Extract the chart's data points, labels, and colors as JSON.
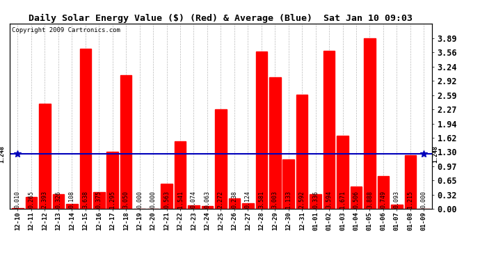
{
  "title": "Daily Solar Energy Value ($) (Red) & Average (Blue)  Sat Jan 10 09:03",
  "copyright": "Copyright 2009 Cartronics.com",
  "average": 1.248,
  "categories": [
    "12-10",
    "12-11",
    "12-12",
    "12-13",
    "12-14",
    "12-15",
    "12-16",
    "12-17",
    "12-18",
    "12-19",
    "12-20",
    "12-21",
    "12-22",
    "12-23",
    "12-24",
    "12-25",
    "12-26",
    "12-27",
    "12-28",
    "12-29",
    "12-30",
    "12-31",
    "01-01",
    "01-02",
    "01-03",
    "01-04",
    "01-05",
    "01-06",
    "01-07",
    "01-08",
    "01-09"
  ],
  "values": [
    0.01,
    0.265,
    2.393,
    0.326,
    0.108,
    3.638,
    0.375,
    1.295,
    3.05,
    0.0,
    0.0,
    0.563,
    1.541,
    0.074,
    0.063,
    2.272,
    0.238,
    0.124,
    3.581,
    3.003,
    1.133,
    2.592,
    0.336,
    3.594,
    1.671,
    0.506,
    3.888,
    0.749,
    0.093,
    1.215,
    0.0
  ],
  "bar_color": "#ff0000",
  "avg_line_color": "#0000bb",
  "bg_color": "#ffffff",
  "plot_bg_color": "#ffffff",
  "ylim": [
    0.0,
    4.22
  ],
  "yticks_right": [
    0.0,
    0.32,
    0.65,
    0.97,
    1.3,
    1.62,
    1.94,
    2.27,
    2.59,
    2.92,
    3.24,
    3.56,
    3.89
  ],
  "grid_color": "#bbbbbb",
  "title_fontsize": 9.5,
  "copyright_fontsize": 6.5,
  "avg_label": "1.248",
  "label_fontsize": 6.0,
  "xtick_fontsize": 6.5,
  "ytick_fontsize": 8.5
}
